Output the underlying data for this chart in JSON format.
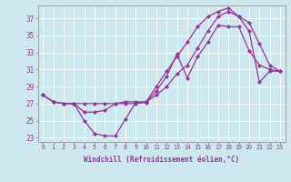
{
  "title": "",
  "xlabel": "Windchill (Refroidissement éolien,°C)",
  "ylabel": "",
  "bg_color": "#cce8ee",
  "line_color": "#993399",
  "xlim": [
    -0.5,
    23.5
  ],
  "ylim": [
    22.5,
    38.5
  ],
  "xticks": [
    0,
    1,
    2,
    3,
    4,
    5,
    6,
    7,
    8,
    9,
    10,
    11,
    12,
    13,
    14,
    15,
    16,
    17,
    18,
    19,
    20,
    21,
    22,
    23
  ],
  "yticks": [
    23,
    25,
    27,
    29,
    31,
    33,
    35,
    37
  ],
  "series": [
    [
      28.0,
      27.2,
      27.0,
      27.0,
      25.0,
      23.5,
      23.2,
      23.2,
      25.2,
      27.1,
      27.1,
      28.5,
      30.2,
      32.8,
      30.0,
      32.5,
      34.2,
      36.2,
      36.0,
      36.0,
      33.2,
      31.5,
      31.0,
      30.8
    ],
    [
      28.0,
      27.2,
      27.0,
      27.0,
      27.0,
      27.0,
      27.0,
      27.0,
      27.0,
      27.0,
      27.2,
      28.0,
      29.0,
      30.5,
      31.5,
      33.5,
      35.5,
      37.2,
      37.8,
      37.2,
      36.5,
      34.0,
      31.5,
      30.8
    ],
    [
      28.0,
      27.2,
      27.0,
      27.0,
      26.0,
      26.0,
      26.2,
      27.0,
      27.2,
      27.2,
      27.2,
      29.0,
      30.8,
      32.5,
      34.2,
      36.0,
      37.2,
      37.8,
      38.2,
      37.2,
      35.5,
      29.5,
      30.8,
      30.8
    ]
  ]
}
